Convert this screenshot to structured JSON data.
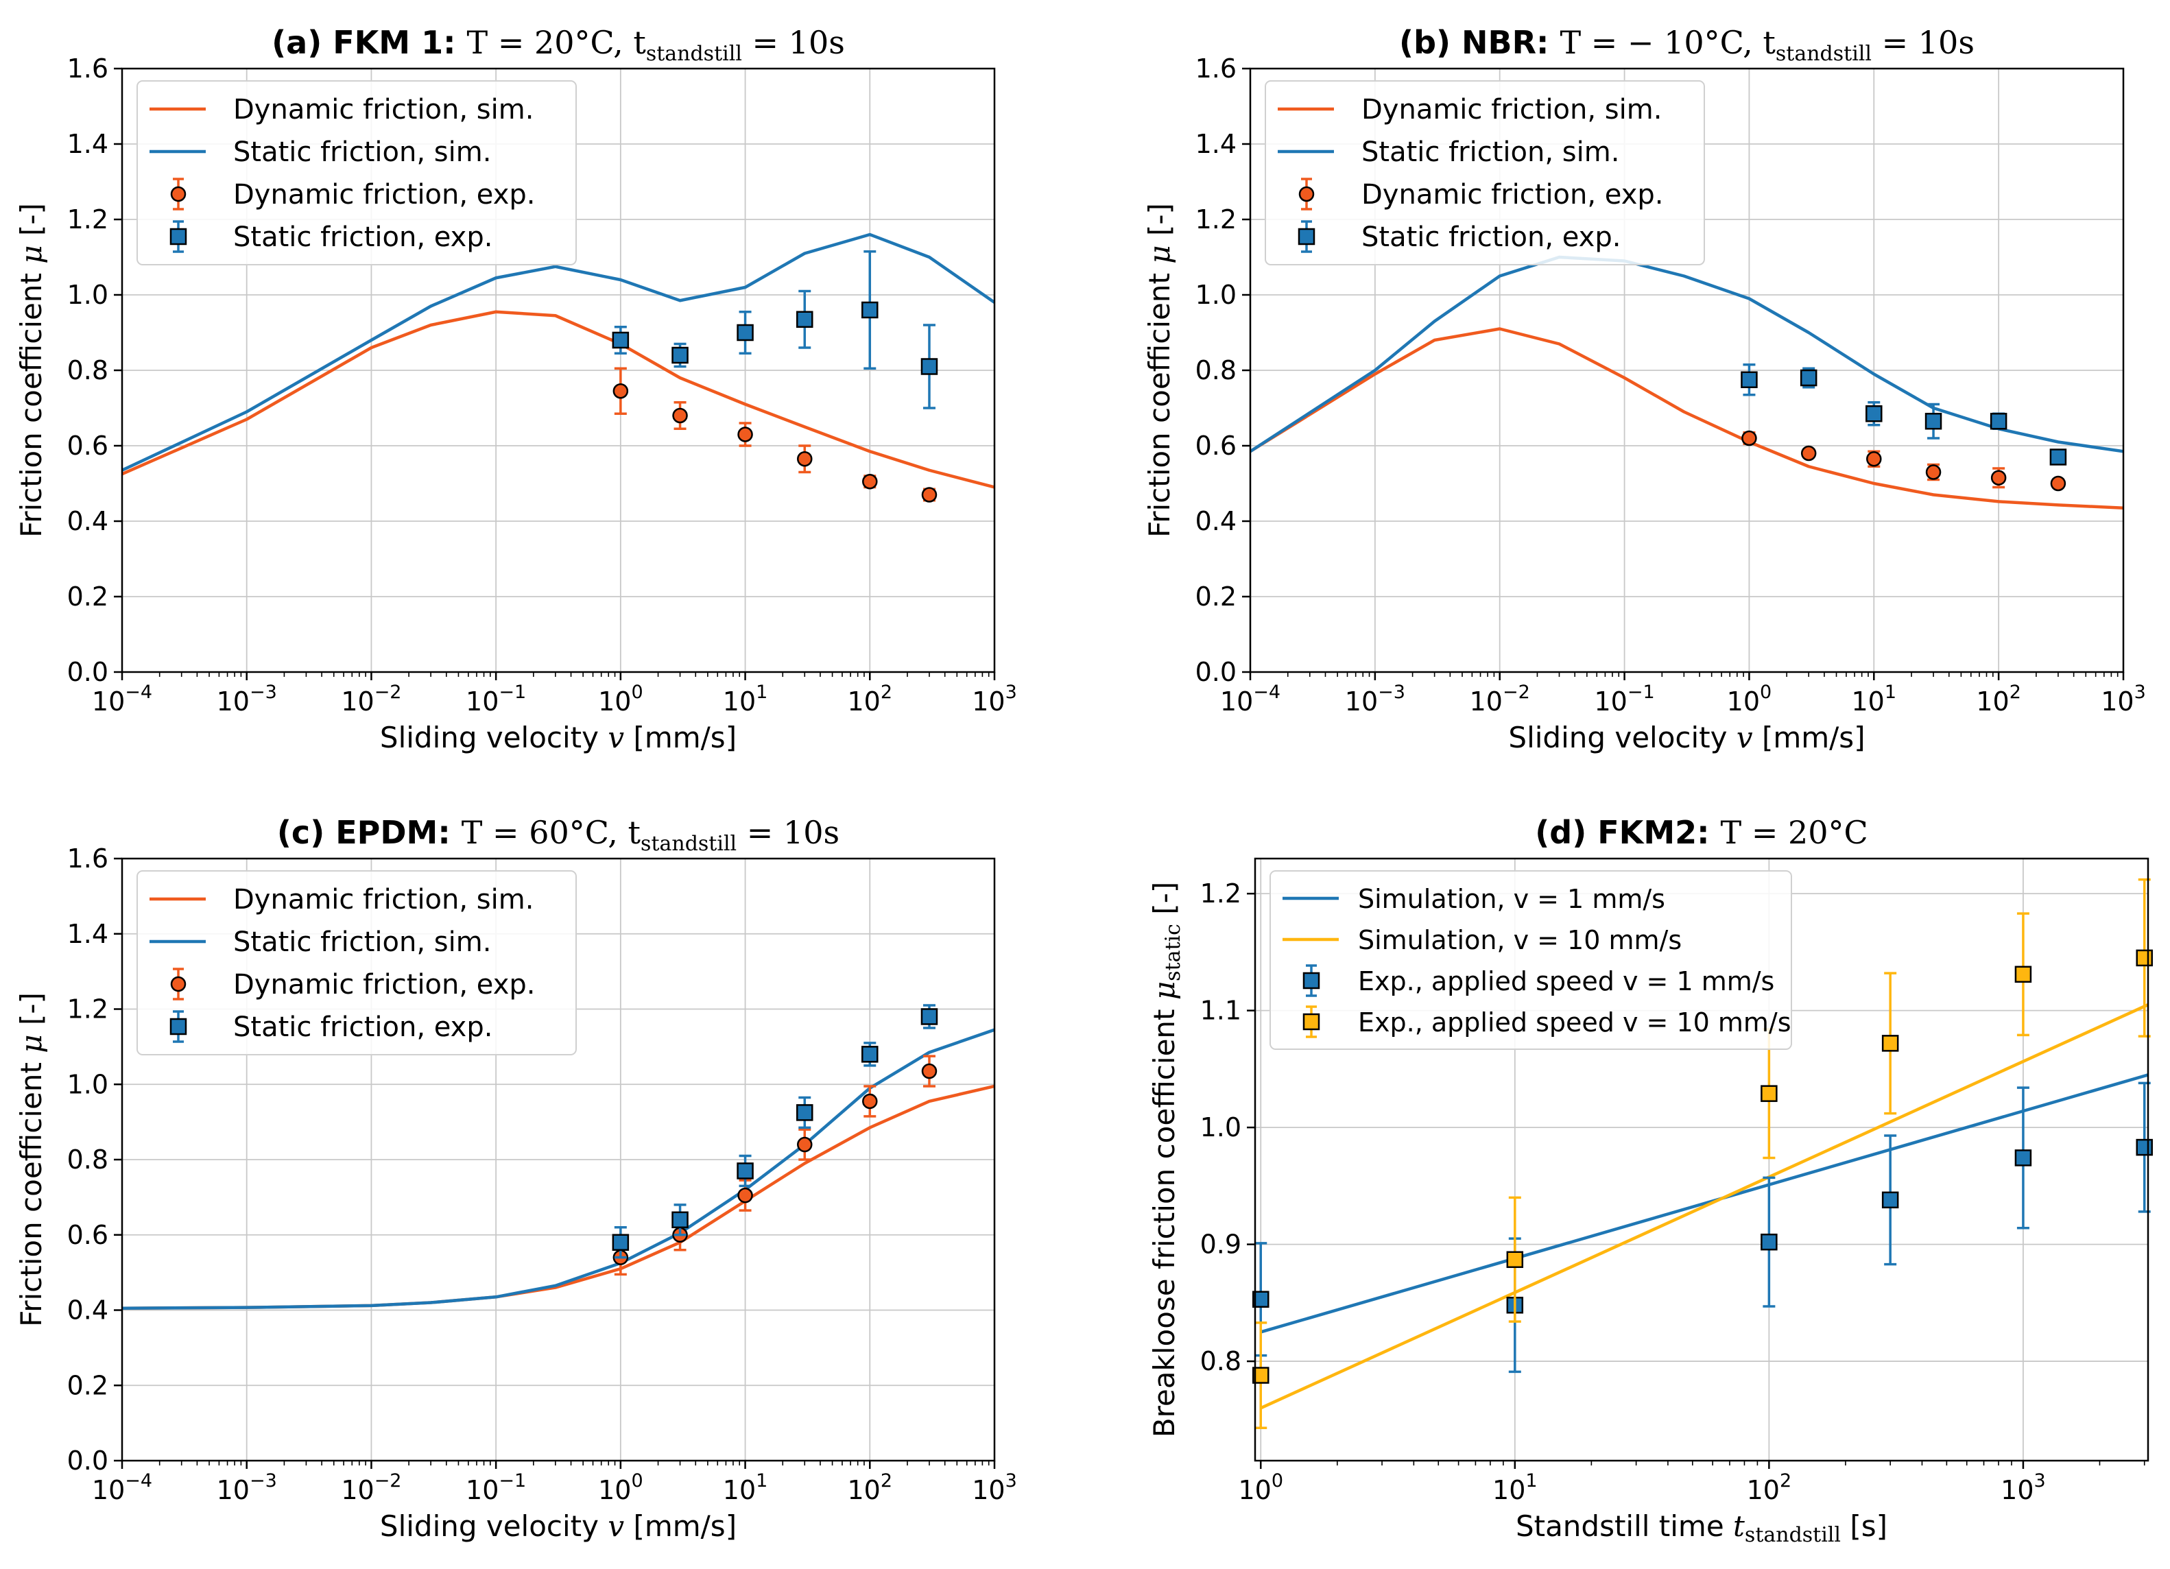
{
  "colors": {
    "dynamic": "#f05a1e",
    "static": "#1f77b4",
    "sim10": "#ffb60f",
    "marker_orange": "#f05a1e",
    "marker_blue": "#1f77b4",
    "marker_yellow": "#ffb60f"
  },
  "chart_data": [
    {
      "id": "a",
      "type": "line",
      "title_bold": "(a) FKM 1:",
      "title_math": "T = 20°C, t",
      "title_sub": "standstill",
      "title_tail": " = 10s",
      "xlabel": "Sliding velocity",
      "xlabel_var": "v",
      "xlabel_unit": "[mm/s]",
      "ylabel": "Friction coefficient",
      "ylabel_var": "μ",
      "ylabel_unit": "[-]",
      "xscale": "log",
      "xlim": [
        0.0001,
        1000
      ],
      "ylim": [
        0.0,
        1.6
      ],
      "yticks": [
        "0.0",
        "0.2",
        "0.4",
        "0.6",
        "0.8",
        "1.0",
        "1.2",
        "1.4",
        "1.6"
      ],
      "xtick_exponents": [
        "−4",
        "−3",
        "−2",
        "−1",
        "0",
        "1",
        "2",
        "3"
      ],
      "legend_position": "top-left",
      "legend": [
        "Dynamic friction, sim.",
        "Static friction, sim.",
        "Dynamic friction, exp.",
        "Static friction, exp."
      ],
      "series": [
        {
          "name": "Dynamic friction, sim.",
          "kind": "line",
          "color": "dynamic",
          "x": [
            0.0001,
            0.001,
            0.01,
            0.03,
            0.1,
            0.3,
            1,
            3,
            10,
            30,
            100,
            300,
            1000
          ],
          "y": [
            0.525,
            0.67,
            0.86,
            0.92,
            0.955,
            0.945,
            0.87,
            0.78,
            0.71,
            0.65,
            0.585,
            0.535,
            0.49
          ]
        },
        {
          "name": "Static friction, sim.",
          "kind": "line",
          "color": "static",
          "x": [
            0.0001,
            0.001,
            0.01,
            0.03,
            0.1,
            0.3,
            1,
            3,
            10,
            30,
            100,
            300,
            1000
          ],
          "y": [
            0.535,
            0.69,
            0.88,
            0.97,
            1.045,
            1.075,
            1.04,
            0.985,
            1.02,
            1.11,
            1.16,
            1.1,
            0.98
          ]
        },
        {
          "name": "Dynamic friction, exp.",
          "kind": "circle",
          "color": "dynamic",
          "x": [
            1,
            3,
            10,
            30,
            100,
            300
          ],
          "y": [
            0.745,
            0.68,
            0.63,
            0.565,
            0.505,
            0.47
          ],
          "err": [
            0.06,
            0.035,
            0.03,
            0.035,
            0.015,
            0.015
          ]
        },
        {
          "name": "Static friction, exp.",
          "kind": "square",
          "color": "static",
          "x": [
            1,
            3,
            10,
            30,
            100,
            300
          ],
          "y": [
            0.88,
            0.84,
            0.9,
            0.935,
            0.96,
            0.81
          ],
          "err": [
            0.035,
            0.03,
            0.055,
            0.075,
            0.155,
            0.11
          ]
        }
      ]
    },
    {
      "id": "b",
      "type": "line",
      "title_bold": "(b) NBR:",
      "title_math": "T = − 10°C, t",
      "title_sub": "standstill",
      "title_tail": " = 10s",
      "xlabel": "Sliding velocity",
      "xlabel_var": "v",
      "xlabel_unit": "[mm/s]",
      "ylabel": "Friction coefficient",
      "ylabel_var": "μ",
      "ylabel_unit": "[-]",
      "xscale": "log",
      "xlim": [
        0.0001,
        1000
      ],
      "ylim": [
        0.0,
        1.6
      ],
      "yticks": [
        "0.0",
        "0.2",
        "0.4",
        "0.6",
        "0.8",
        "1.0",
        "1.2",
        "1.4",
        "1.6"
      ],
      "xtick_exponents": [
        "−4",
        "−3",
        "−2",
        "−1",
        "0",
        "1",
        "2",
        "3"
      ],
      "legend_position": "top-left",
      "legend": [
        "Dynamic friction, sim.",
        "Static friction, sim.",
        "Dynamic friction, exp.",
        "Static friction, exp."
      ],
      "series": [
        {
          "name": "Dynamic friction, sim.",
          "kind": "line",
          "color": "dynamic",
          "x": [
            0.0001,
            0.001,
            0.003,
            0.01,
            0.03,
            0.1,
            0.3,
            1,
            3,
            10,
            30,
            100,
            300,
            1000
          ],
          "y": [
            0.585,
            0.79,
            0.88,
            0.91,
            0.87,
            0.78,
            0.69,
            0.61,
            0.545,
            0.5,
            0.47,
            0.452,
            0.443,
            0.435
          ]
        },
        {
          "name": "Static friction, sim.",
          "kind": "line",
          "color": "static",
          "x": [
            0.0001,
            0.001,
            0.003,
            0.01,
            0.03,
            0.1,
            0.3,
            1,
            3,
            10,
            30,
            100,
            300,
            1000
          ],
          "y": [
            0.585,
            0.8,
            0.93,
            1.05,
            1.1,
            1.09,
            1.05,
            0.99,
            0.9,
            0.79,
            0.7,
            0.645,
            0.61,
            0.585
          ]
        },
        {
          "name": "Dynamic friction, exp.",
          "kind": "circle",
          "color": "dynamic",
          "x": [
            1,
            3,
            10,
            30,
            100,
            300
          ],
          "y": [
            0.62,
            0.58,
            0.565,
            0.53,
            0.515,
            0.5
          ],
          "err": [
            0.015,
            0.01,
            0.02,
            0.02,
            0.025,
            0.01
          ]
        },
        {
          "name": "Static friction, exp.",
          "kind": "square",
          "color": "static",
          "x": [
            1,
            3,
            10,
            30,
            100,
            300
          ],
          "y": [
            0.775,
            0.78,
            0.685,
            0.665,
            0.665,
            0.57
          ],
          "err": [
            0.04,
            0.025,
            0.03,
            0.045,
            0.02,
            0.01
          ]
        }
      ]
    },
    {
      "id": "c",
      "type": "line",
      "title_bold": "(c) EPDM:",
      "title_math": "T = 60°C, t",
      "title_sub": "standstill",
      "title_tail": " = 10s",
      "xlabel": "Sliding velocity",
      "xlabel_var": "v",
      "xlabel_unit": "[mm/s]",
      "ylabel": "Friction coefficient",
      "ylabel_var": "μ",
      "ylabel_unit": "[-]",
      "xscale": "log",
      "xlim": [
        0.0001,
        1000
      ],
      "ylim": [
        0.0,
        1.6
      ],
      "yticks": [
        "0.0",
        "0.2",
        "0.4",
        "0.6",
        "0.8",
        "1.0",
        "1.2",
        "1.4",
        "1.6"
      ],
      "xtick_exponents": [
        "−4",
        "−3",
        "−2",
        "−1",
        "0",
        "1",
        "2",
        "3"
      ],
      "legend_position": "top-left",
      "legend": [
        "Dynamic friction, sim.",
        "Static friction, sim.",
        "Dynamic friction, exp.",
        "Static friction, exp."
      ],
      "series": [
        {
          "name": "Dynamic friction, sim.",
          "kind": "line",
          "color": "dynamic",
          "x": [
            0.0001,
            0.001,
            0.01,
            0.03,
            0.1,
            0.3,
            1,
            3,
            10,
            30,
            100,
            300,
            1000
          ],
          "y": [
            0.405,
            0.407,
            0.412,
            0.42,
            0.435,
            0.46,
            0.51,
            0.58,
            0.69,
            0.79,
            0.885,
            0.955,
            0.995
          ]
        },
        {
          "name": "Static friction, sim.",
          "kind": "line",
          "color": "static",
          "x": [
            0.0001,
            0.001,
            0.01,
            0.03,
            0.1,
            0.3,
            1,
            3,
            10,
            30,
            100,
            300,
            1000
          ],
          "y": [
            0.405,
            0.407,
            0.412,
            0.42,
            0.435,
            0.465,
            0.525,
            0.605,
            0.72,
            0.84,
            0.99,
            1.085,
            1.145
          ]
        },
        {
          "name": "Dynamic friction, exp.",
          "kind": "circle",
          "color": "dynamic",
          "x": [
            1,
            3,
            10,
            30,
            100,
            300
          ],
          "y": [
            0.54,
            0.6,
            0.705,
            0.84,
            0.955,
            1.035
          ],
          "err": [
            0.045,
            0.04,
            0.04,
            0.04,
            0.04,
            0.04
          ]
        },
        {
          "name": "Static friction, exp.",
          "kind": "square",
          "color": "static",
          "x": [
            1,
            3,
            10,
            30,
            100,
            300
          ],
          "y": [
            0.58,
            0.64,
            0.77,
            0.925,
            1.08,
            1.18
          ],
          "err": [
            0.04,
            0.04,
            0.04,
            0.04,
            0.03,
            0.03
          ]
        }
      ]
    },
    {
      "id": "d",
      "type": "line",
      "title_bold": "(d) FKM2:",
      "title_math": "T = 20°C",
      "title_sub": "",
      "title_tail": "",
      "xlabel": "Standstill time",
      "xlabel_var": "t",
      "xlabel_sub": "standstill",
      "xlabel_unit": "[s]",
      "ylabel": "Breakloose friction coefficient",
      "ylabel_var": "μ",
      "ylabel_sub": "static",
      "ylabel_unit": "[-]",
      "xscale": "log",
      "xlim": [
        0.95,
        3100
      ],
      "ylim": [
        0.715,
        1.23
      ],
      "yticks": [
        "0.8",
        "0.9",
        "1.0",
        "1.1",
        "1.2"
      ],
      "xtick_exponents": [
        "0",
        "1",
        "2",
        "3"
      ],
      "legend_position": "top-left",
      "legend": [
        "Simulation, v = 1 mm/s",
        "Simulation, v = 10 mm/s",
        "Exp., applied speed v = 1 mm/s",
        "Exp., applied speed v = 10 mm/s"
      ],
      "series": [
        {
          "name": "Simulation, v = 1 mm/s",
          "kind": "line",
          "color": "static",
          "x": [
            1,
            3100
          ],
          "y": [
            0.825,
            1.045
          ]
        },
        {
          "name": "Simulation, v = 10 mm/s",
          "kind": "line",
          "color": "sim10",
          "x": [
            1,
            3100
          ],
          "y": [
            0.76,
            1.105
          ]
        },
        {
          "name": "Exp., applied speed v = 1 mm/s",
          "kind": "square",
          "color": "static",
          "x": [
            1,
            10,
            100,
            300,
            1000,
            3000
          ],
          "y": [
            0.853,
            0.848,
            0.902,
            0.938,
            0.974,
            0.983
          ],
          "err": [
            0.048,
            0.057,
            0.055,
            0.055,
            0.06,
            0.055
          ]
        },
        {
          "name": "Exp., applied speed v = 10 mm/s",
          "kind": "square",
          "color": "sim10",
          "x": [
            1,
            10,
            100,
            300,
            1000,
            3000
          ],
          "y": [
            0.788,
            0.887,
            1.029,
            1.072,
            1.131,
            1.145
          ],
          "err": [
            0.045,
            0.053,
            0.055,
            0.06,
            0.052,
            0.067
          ]
        }
      ]
    }
  ]
}
